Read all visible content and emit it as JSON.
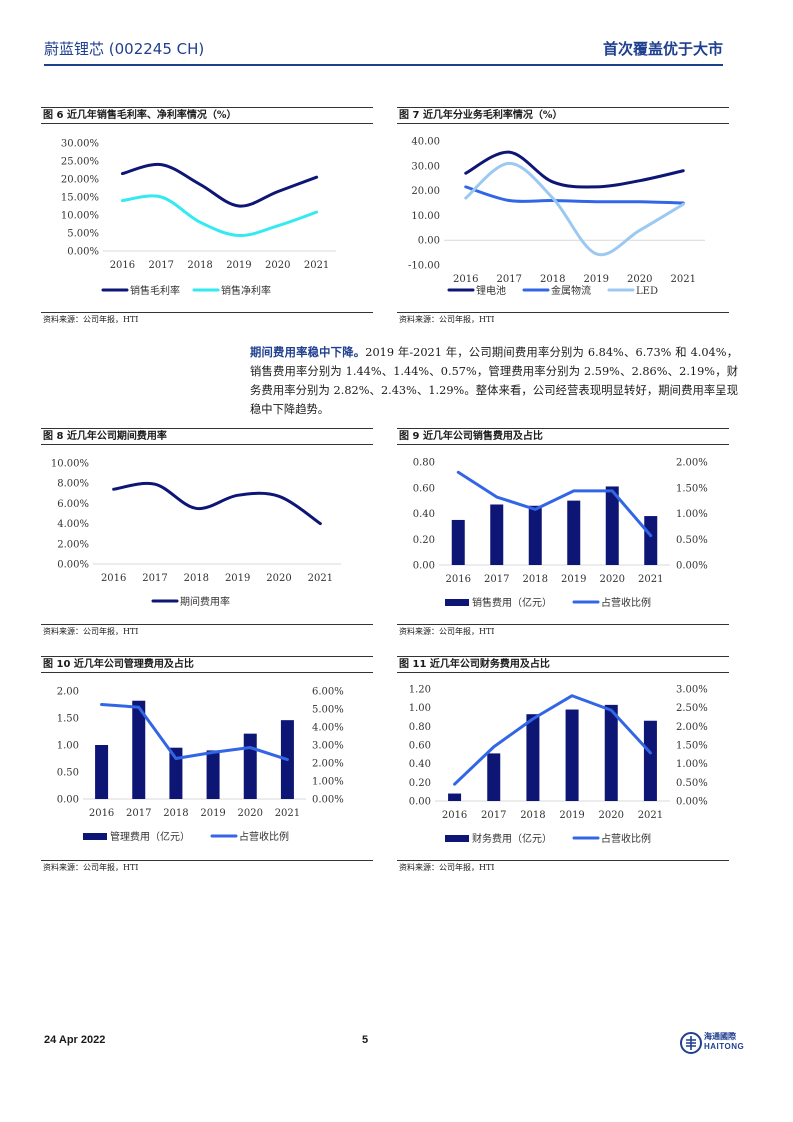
{
  "header": {
    "company": "蔚蓝锂芯 (002245 CH)",
    "report_title": "首次覆盖优于大市"
  },
  "footer": {
    "date": "24 Apr 2022",
    "page": "5",
    "logo_zh": "海通國際",
    "logo_en": "HAITONG"
  },
  "paragraph": {
    "lead": "期间费用率稳中下降。",
    "text": "2019 年-2021 年，公司期间费用率分别为 6.84%、6.73% 和 4.04%，销售费用率分别为 1.44%、1.44%、0.57%，管理费用率分别为 2.59%、2.86%、2.19%，财务费用率分别为 2.82%、2.43%、1.29%。整体来看，公司经营表现明显转好，期间费用率呈现稳中下降趋势。"
  },
  "figures": [
    {
      "num": "图 6",
      "title": "近几年销售毛利率、净利率情况（%）",
      "source": "资料来源：公司年报，HTI"
    },
    {
      "num": "图 7",
      "title": "近几年分业务毛利率情况（%）",
      "source": "资料来源：公司年报，HTI"
    },
    {
      "num": "图 8",
      "title": "近几年公司期间费用率",
      "source": "资料来源：公司年报，HTI"
    },
    {
      "num": "图 9",
      "title": "近几年公司销售费用及占比",
      "source": "资料来源：公司年报，HTI"
    },
    {
      "num": "图 10",
      "title": "近几年公司管理费用及占比",
      "source": "资料来源：公司年报，HTI"
    },
    {
      "num": "图 11",
      "title": "近几年公司财务费用及占比",
      "source": "资料来源：公司年报，HTI"
    }
  ],
  "colors": {
    "navy": "#0d1675",
    "cyan": "#33eaf0",
    "blue": "#3366e6",
    "light_blue": "#9cc9f2",
    "header_blue": "#1f3f8f"
  },
  "chart_data": [
    {
      "type": "line",
      "x": [
        "2016",
        "2017",
        "2018",
        "2019",
        "2020",
        "2021"
      ],
      "series": [
        {
          "name": "销售毛利率",
          "values": [
            21.5,
            24.0,
            18.5,
            12.5,
            16.5,
            20.5
          ]
        },
        {
          "name": "销售净利率",
          "values": [
            14.0,
            15.0,
            8.0,
            4.3,
            7.0,
            10.8
          ]
        }
      ],
      "y_ticks": [
        "0.00%",
        "5.00%",
        "10.00%",
        "15.00%",
        "20.00%",
        "25.00%",
        "30.00%"
      ],
      "ylim": [
        0,
        30
      ],
      "legend_position": "bottom"
    },
    {
      "type": "line",
      "x": [
        "2016",
        "2017",
        "2018",
        "2019",
        "2020",
        "2021"
      ],
      "series": [
        {
          "name": "锂电池",
          "values": [
            27.0,
            35.5,
            23.5,
            21.5,
            24.0,
            28.0
          ]
        },
        {
          "name": "金属物流",
          "values": [
            21.5,
            16.0,
            16.0,
            15.5,
            15.5,
            15.0
          ]
        },
        {
          "name": "LED",
          "values": [
            17.0,
            31.0,
            17.0,
            -5.5,
            4.0,
            14.5
          ]
        }
      ],
      "y_ticks": [
        "-10.00",
        "0.00",
        "10.00",
        "20.00",
        "30.00",
        "40.00"
      ],
      "ylim": [
        -10,
        40
      ],
      "legend_position": "bottom"
    },
    {
      "type": "line",
      "x": [
        "2016",
        "2017",
        "2018",
        "2019",
        "2020",
        "2021"
      ],
      "series": [
        {
          "name": "期间费用率",
          "values": [
            7.4,
            7.9,
            5.5,
            6.8,
            6.7,
            4.0
          ]
        }
      ],
      "y_ticks": [
        "0.00%",
        "2.00%",
        "4.00%",
        "6.00%",
        "8.00%",
        "10.00%"
      ],
      "ylim": [
        0,
        10
      ],
      "legend_position": "bottom"
    },
    {
      "type": "bar",
      "x": [
        "2016",
        "2017",
        "2018",
        "2019",
        "2020",
        "2021"
      ],
      "series": [
        {
          "name": "销售费用（亿元）",
          "kind": "bar",
          "axis": "left",
          "values": [
            0.35,
            0.47,
            0.46,
            0.5,
            0.61,
            0.38
          ]
        },
        {
          "name": "占营收比例",
          "kind": "line",
          "axis": "right",
          "values": [
            1.8,
            1.32,
            1.08,
            1.44,
            1.44,
            0.57
          ]
        }
      ],
      "y_ticks": [
        "0.00",
        "0.20",
        "0.40",
        "0.60",
        "0.80"
      ],
      "y2_ticks": [
        "0.00%",
        "0.50%",
        "1.00%",
        "1.50%",
        "2.00%"
      ],
      "ylim": [
        0,
        0.8
      ],
      "y2lim": [
        0,
        2
      ],
      "legend_position": "bottom"
    },
    {
      "type": "bar",
      "x": [
        "2016",
        "2017",
        "2018",
        "2019",
        "2020",
        "2021"
      ],
      "series": [
        {
          "name": "管理费用（亿元）",
          "kind": "bar",
          "axis": "left",
          "values": [
            1.0,
            1.82,
            0.95,
            0.9,
            1.21,
            1.46
          ]
        },
        {
          "name": "占营收比例",
          "kind": "line",
          "axis": "right",
          "values": [
            5.25,
            5.1,
            2.25,
            2.59,
            2.86,
            2.19
          ]
        }
      ],
      "y_ticks": [
        "0.00",
        "0.50",
        "1.00",
        "1.50",
        "2.00"
      ],
      "y2_ticks": [
        "0.00%",
        "1.00%",
        "2.00%",
        "3.00%",
        "4.00%",
        "5.00%",
        "6.00%"
      ],
      "ylim": [
        0,
        2
      ],
      "y2lim": [
        0,
        6
      ],
      "legend_position": "bottom"
    },
    {
      "type": "bar",
      "x": [
        "2016",
        "2017",
        "2018",
        "2019",
        "2020",
        "2021"
      ],
      "series": [
        {
          "name": "财务费用（亿元）",
          "kind": "bar",
          "axis": "left",
          "values": [
            0.08,
            0.51,
            0.93,
            0.98,
            1.03,
            0.86
          ]
        },
        {
          "name": "占营收比例",
          "kind": "line",
          "axis": "right",
          "values": [
            0.45,
            1.45,
            2.2,
            2.82,
            2.43,
            1.29
          ]
        }
      ],
      "y_ticks": [
        "0.00",
        "0.20",
        "0.40",
        "0.60",
        "0.80",
        "1.00",
        "1.20"
      ],
      "y2_ticks": [
        "0.00%",
        "0.50%",
        "1.00%",
        "1.50%",
        "2.00%",
        "2.50%",
        "3.00%"
      ],
      "ylim": [
        0,
        1.2
      ],
      "y2lim": [
        0,
        3
      ],
      "legend_position": "bottom"
    }
  ]
}
